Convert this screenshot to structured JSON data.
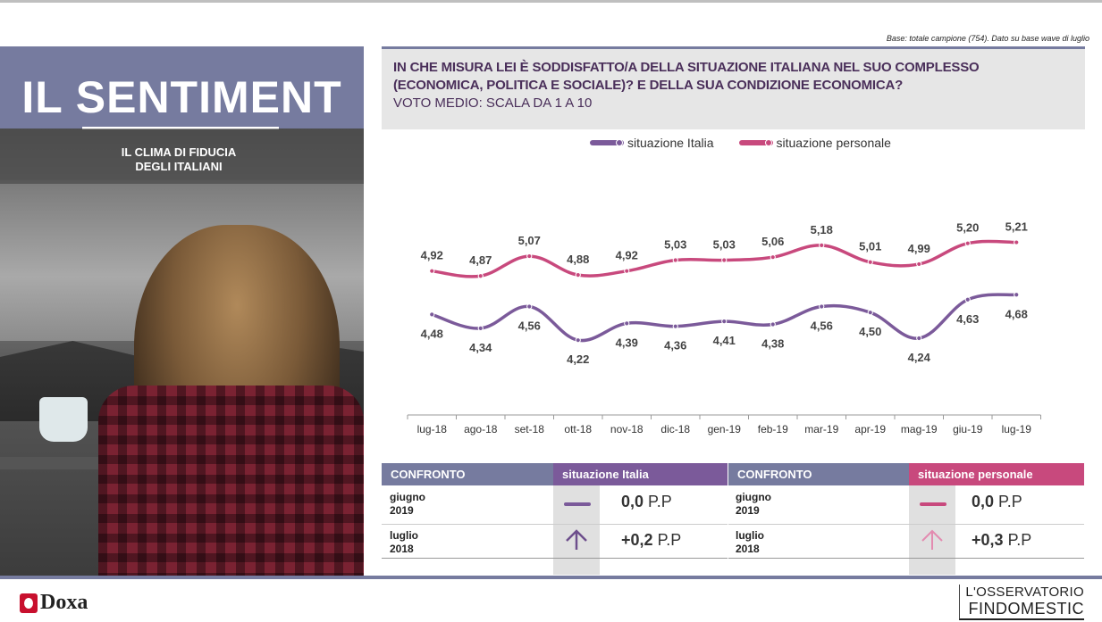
{
  "left_panel": {
    "title": "IL SENTIMENT",
    "subtitle_line1": "IL CLIMA  DI FIDUCIA",
    "subtitle_line2": "DEGLI  ITALIANI"
  },
  "base_note": "Base: totale campione  (754). Dato su base wave di luglio",
  "question": {
    "line1": "IN CHE MISURA LEI È SODDISFATTO/A DELLA SITUAZIONE ITALIANA NEL SUO COMPLESSO",
    "line2": "(ECONOMICA,  POLITICA E SOCIALE)?  E DELLA SUA CONDIZIONE  ECONOMICA?",
    "line3": "VOTO MEDIO: SCALA DA 1 A 10"
  },
  "chart_data": {
    "type": "line",
    "categories": [
      "lug-18",
      "ago-18",
      "set-18",
      "ott-18",
      "nov-18",
      "dic-18",
      "gen-19",
      "feb-19",
      "mar-19",
      "apr-19",
      "mag-19",
      "giu-19",
      "lug-19"
    ],
    "series": [
      {
        "name": "situazione Italia",
        "color": "#7b5a9a",
        "values": [
          4.48,
          4.34,
          4.56,
          4.22,
          4.39,
          4.36,
          4.41,
          4.38,
          4.56,
          4.5,
          4.24,
          4.63,
          4.68
        ],
        "labels": [
          "4,48",
          "4,34",
          "4,56",
          "4,22",
          "4,39",
          "4,36",
          "4,41",
          "4,38",
          "4,56",
          "4,50",
          "4,24",
          "4,63",
          "4,68"
        ]
      },
      {
        "name": "situazione personale",
        "color": "#c8497d",
        "values": [
          4.92,
          4.87,
          5.07,
          4.88,
          4.92,
          5.03,
          5.03,
          5.06,
          5.18,
          5.01,
          4.99,
          5.2,
          5.21
        ],
        "labels": [
          "4,92",
          "4,87",
          "5,07",
          "4,88",
          "4,92",
          "5,03",
          "5,03",
          "5,06",
          "5,18",
          "5,01",
          "4,99",
          "5,20",
          "5,21"
        ]
      }
    ],
    "legend_position": "top",
    "grid": false
  },
  "comparison": {
    "left": {
      "header_label": "CONFRONTO",
      "header_series": "situazione  Italia",
      "series_color": "#7b5a9a",
      "rows": [
        {
          "period_line1": "giugno",
          "period_line2": "2019",
          "icon": "dash-icon",
          "value": "0,0",
          "unit": "P.P"
        },
        {
          "period_line1": "luglio",
          "period_line2": "2018",
          "icon": "arrow-up-icon",
          "value": "+0,2",
          "unit": "P.P"
        }
      ]
    },
    "right": {
      "header_label": "CONFRONTO",
      "header_series": "situazione  personale",
      "series_color": "#c8497d",
      "rows": [
        {
          "period_line1": "giugno",
          "period_line2": "2019",
          "icon": "dash-icon",
          "value": "0,0",
          "unit": "P.P"
        },
        {
          "period_line1": "luglio",
          "period_line2": "2018",
          "icon": "arrow-up-icon",
          "value": "+0,3",
          "unit": "P.P"
        }
      ]
    }
  },
  "footer": {
    "doxa": "Doxa",
    "observatorio_line1": "L'OSSERVATORIO",
    "observatorio_line2": "FINDOMESTIC"
  }
}
